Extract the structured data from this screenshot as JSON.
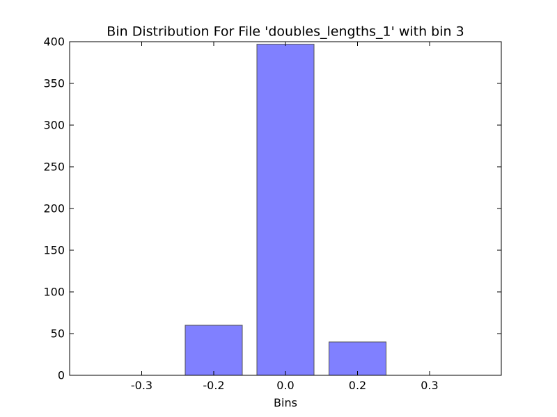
{
  "chart_data": {
    "type": "bar",
    "title": "Bin Distribution For File 'doubles_lengths_1' with bin 3",
    "xlabel": "Bins",
    "ylabel": "",
    "categories": [
      "-0.3",
      "-0.2",
      "0.0",
      "0.2",
      "0.3"
    ],
    "values": [
      0,
      60,
      397,
      40,
      0
    ],
    "ylim": [
      0,
      400
    ],
    "yticks": [
      0,
      50,
      100,
      150,
      200,
      250,
      300,
      350,
      400
    ],
    "grid": false,
    "legend": "none",
    "bar_color": "#8080ff",
    "bar_edge_color": "#505050"
  }
}
